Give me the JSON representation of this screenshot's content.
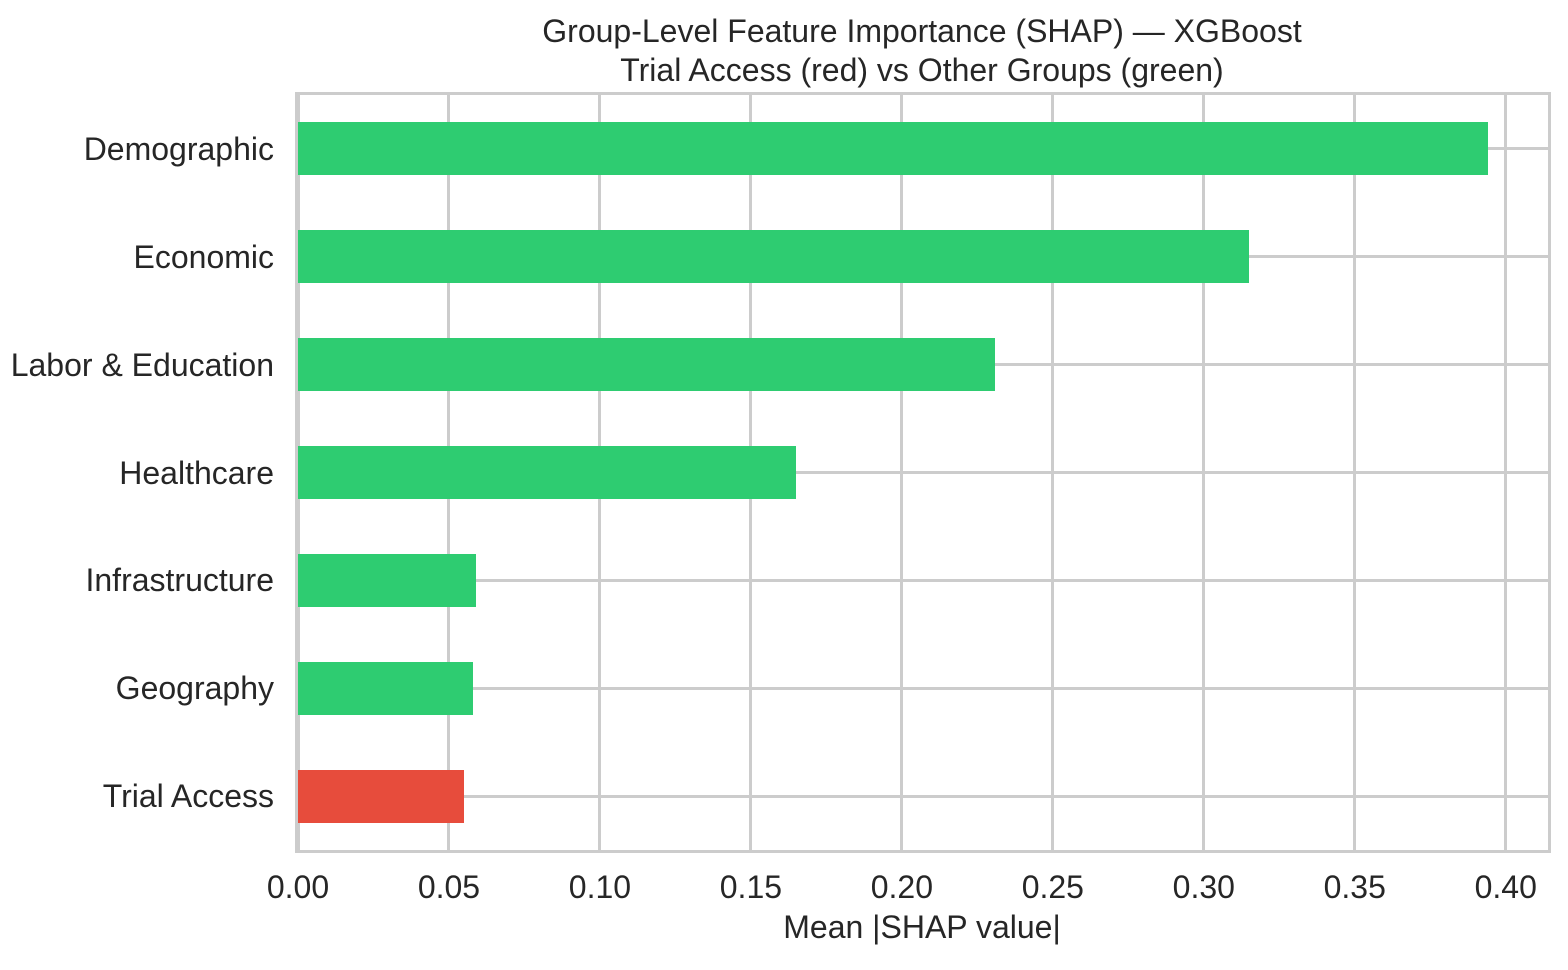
{
  "title": {
    "line1": "Group-Level Feature Importance (SHAP) — XGBoost",
    "line2": "Trial Access (red) vs Other Groups (green)"
  },
  "theme": {
    "green": "#2ecc71",
    "red": "#e74c3c",
    "grid_color": "#cccccc",
    "text_color": "#262626",
    "background": "#ffffff"
  },
  "chart_data": {
    "type": "bar",
    "orientation": "horizontal",
    "title": "Group-Level Feature Importance (SHAP) — XGBoost\nTrial Access (red) vs Other Groups (green)",
    "xlabel": "Mean |SHAP value|",
    "ylabel": "",
    "categories": [
      "Demographic",
      "Economic",
      "Labor & Education",
      "Healthcare",
      "Infrastructure",
      "Geography",
      "Trial Access"
    ],
    "values": [
      0.394,
      0.315,
      0.231,
      0.165,
      0.059,
      0.058,
      0.055
    ],
    "bar_colors": [
      "#2ecc71",
      "#2ecc71",
      "#2ecc71",
      "#2ecc71",
      "#2ecc71",
      "#2ecc71",
      "#e74c3c"
    ],
    "highlight": {
      "category": "Trial Access",
      "color": "#e74c3c"
    },
    "xticks": [
      0.0,
      0.05,
      0.1,
      0.15,
      0.2,
      0.25,
      0.3,
      0.35,
      0.4
    ],
    "xtick_labels": [
      "0.00",
      "0.05",
      "0.10",
      "0.15",
      "0.20",
      "0.25",
      "0.30",
      "0.35",
      "0.40"
    ],
    "xlim": [
      0,
      0.414
    ],
    "grid": true,
    "legend_position": "none"
  }
}
